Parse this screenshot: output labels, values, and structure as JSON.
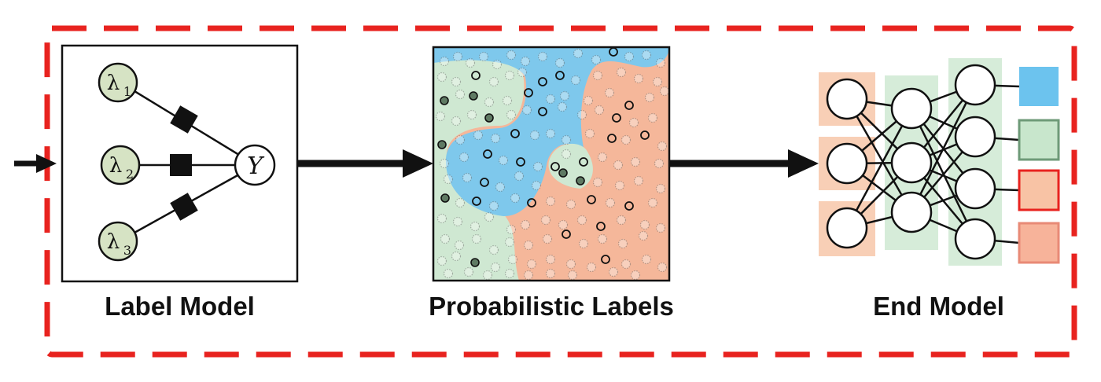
{
  "label_model": {
    "caption": "Label Model",
    "lambdas": [
      {
        "symbol": "λ",
        "subscript": "1"
      },
      {
        "symbol": "λ",
        "subscript": "2"
      },
      {
        "symbol": "λ",
        "subscript": "3"
      }
    ],
    "output_node": "Y"
  },
  "probabilistic_labels": {
    "caption": "Probabilistic Labels"
  },
  "end_model": {
    "caption": "End Model"
  },
  "colors": {
    "frame_dash": "#e8231f",
    "blue_region": "#7ec8ec",
    "green_region": "#cfe8d2",
    "orange_region": "#f5b79a",
    "node_fill": "#d6e3c4",
    "output_blue": "#6cc3ee",
    "output_green": "#c8e6cc",
    "output_orange": "#f8c3a5",
    "output_orange_light": "#f7b39a"
  }
}
